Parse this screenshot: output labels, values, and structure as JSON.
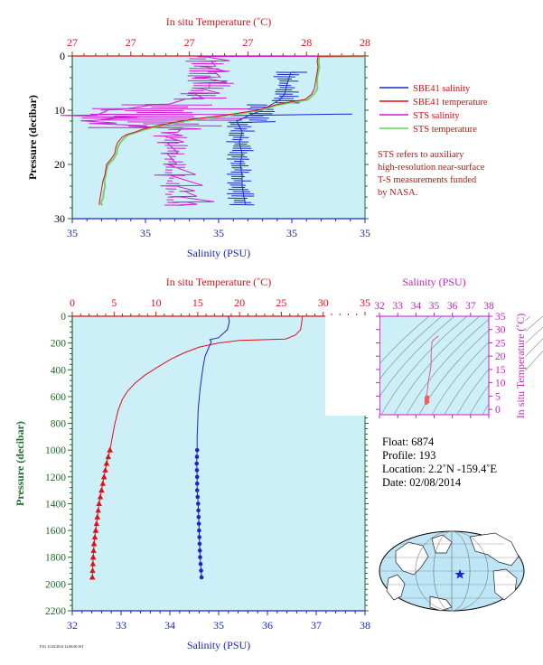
{
  "top_panel": {
    "temp_axis_title": "In situ Temperature (˚C)",
    "temp_ticks": [
      "27",
      "27",
      "27",
      "27",
      "28",
      "28"
    ],
    "sal_ticks": [
      "35",
      "35",
      "35",
      "35",
      "35"
    ],
    "sal_axis_title": "Salinity (PSU)",
    "pressure_axis_title": "Pressure (decibar)",
    "pressure_ticks": [
      "0",
      "10",
      "20",
      "30"
    ]
  },
  "legend": {
    "items": [
      {
        "label": "SBE41 salinity",
        "color": "#1a26c8"
      },
      {
        "label": "SBE41 temperature",
        "color": "#e0101a"
      },
      {
        "label": "STS salinity",
        "color": "#d21ad2"
      },
      {
        "label": "STS temperature",
        "color": "#5fd35f"
      }
    ],
    "note_lines": [
      "STS refers to auxiliary",
      "high-resolution near-surface",
      "T-S measurements funded",
      "by NASA."
    ]
  },
  "bottom_panel": {
    "temp_axis_title": "In situ Temperature (˚C)",
    "temp_ticks": [
      "0",
      "5",
      "10",
      "15",
      "20",
      "25",
      "30",
      "35"
    ],
    "sal_ticks": [
      "32",
      "33",
      "34",
      "35",
      "36",
      "37",
      "38"
    ],
    "sal_axis_title": "Salinity (PSU)",
    "pressure_axis_title": "Pressure (decibar)",
    "pressure_ticks": [
      "0",
      "200",
      "400",
      "600",
      "800",
      "1000",
      "1200",
      "1400",
      "1600",
      "1800",
      "2000",
      "2200"
    ]
  },
  "ts_panel": {
    "sal_axis_title": "Salinity (PSU)",
    "sal_ticks": [
      "32",
      "33",
      "34",
      "35",
      "36",
      "37",
      "38"
    ],
    "temp_axis_title": "In situ Temperature (˚C)",
    "temp_ticks": [
      "0",
      "5",
      "10",
      "15",
      "20",
      "25",
      "30",
      "35"
    ]
  },
  "info": {
    "float": "Float:  6874",
    "profile": "Profile:  193",
    "location": "Location:  2.2˚N  -159.4˚E",
    "date": "Date:  02/08/2014"
  },
  "footer_code": "F1G 11/25/2014 12:00:00 IST",
  "chart_data": [
    {
      "type": "line",
      "series": [
        {
          "name": "SBE41 temperature",
          "temperature_c": [
            27.5,
            27.45,
            27.3,
            26.7,
            25.5,
            20,
            17.5,
            15.2,
            13.5,
            11.8,
            10.2,
            8.7,
            7.5,
            6.6,
            6.0,
            5.5,
            5.1,
            4.8,
            4.5,
            4.1,
            3.8,
            3.5,
            3.2,
            3.0,
            2.8,
            2.6,
            2.5,
            2.4
          ],
          "pressure_db": [
            0,
            40,
            100,
            140,
            170,
            180,
            200,
            230,
            270,
            320,
            380,
            440,
            500,
            560,
            620,
            700,
            800,
            900,
            1000,
            1100,
            1200,
            1300,
            1400,
            1500,
            1600,
            1700,
            1800,
            1950
          ]
        },
        {
          "name": "SBE41 salinity",
          "salinity_psu": [
            35.2,
            35.22,
            35.18,
            35.0,
            34.82,
            34.85,
            34.78,
            34.72,
            34.68,
            34.65,
            34.62,
            34.6,
            34.58,
            34.57,
            34.56,
            34.56,
            34.55,
            34.56,
            34.56,
            34.58,
            34.59,
            34.6,
            34.61,
            34.62,
            34.63,
            34.64,
            34.65
          ],
          "pressure_db": [
            0,
            40,
            100,
            160,
            175,
            190,
            250,
            300,
            380,
            460,
            540,
            620,
            700,
            800,
            900,
            1000,
            1100,
            1200,
            1300,
            1400,
            1500,
            1600,
            1700,
            1800,
            1850,
            1900,
            1950
          ]
        }
      ],
      "xlabel_top": "In situ Temperature (˚C)",
      "xlabel_bottom": "Salinity (PSU)",
      "ylabel": "Pressure (decibar)",
      "temperature_range": [
        0,
        35
      ],
      "salinity_range": [
        32,
        38
      ],
      "pressure_range": [
        0,
        2200
      ]
    }
  ]
}
